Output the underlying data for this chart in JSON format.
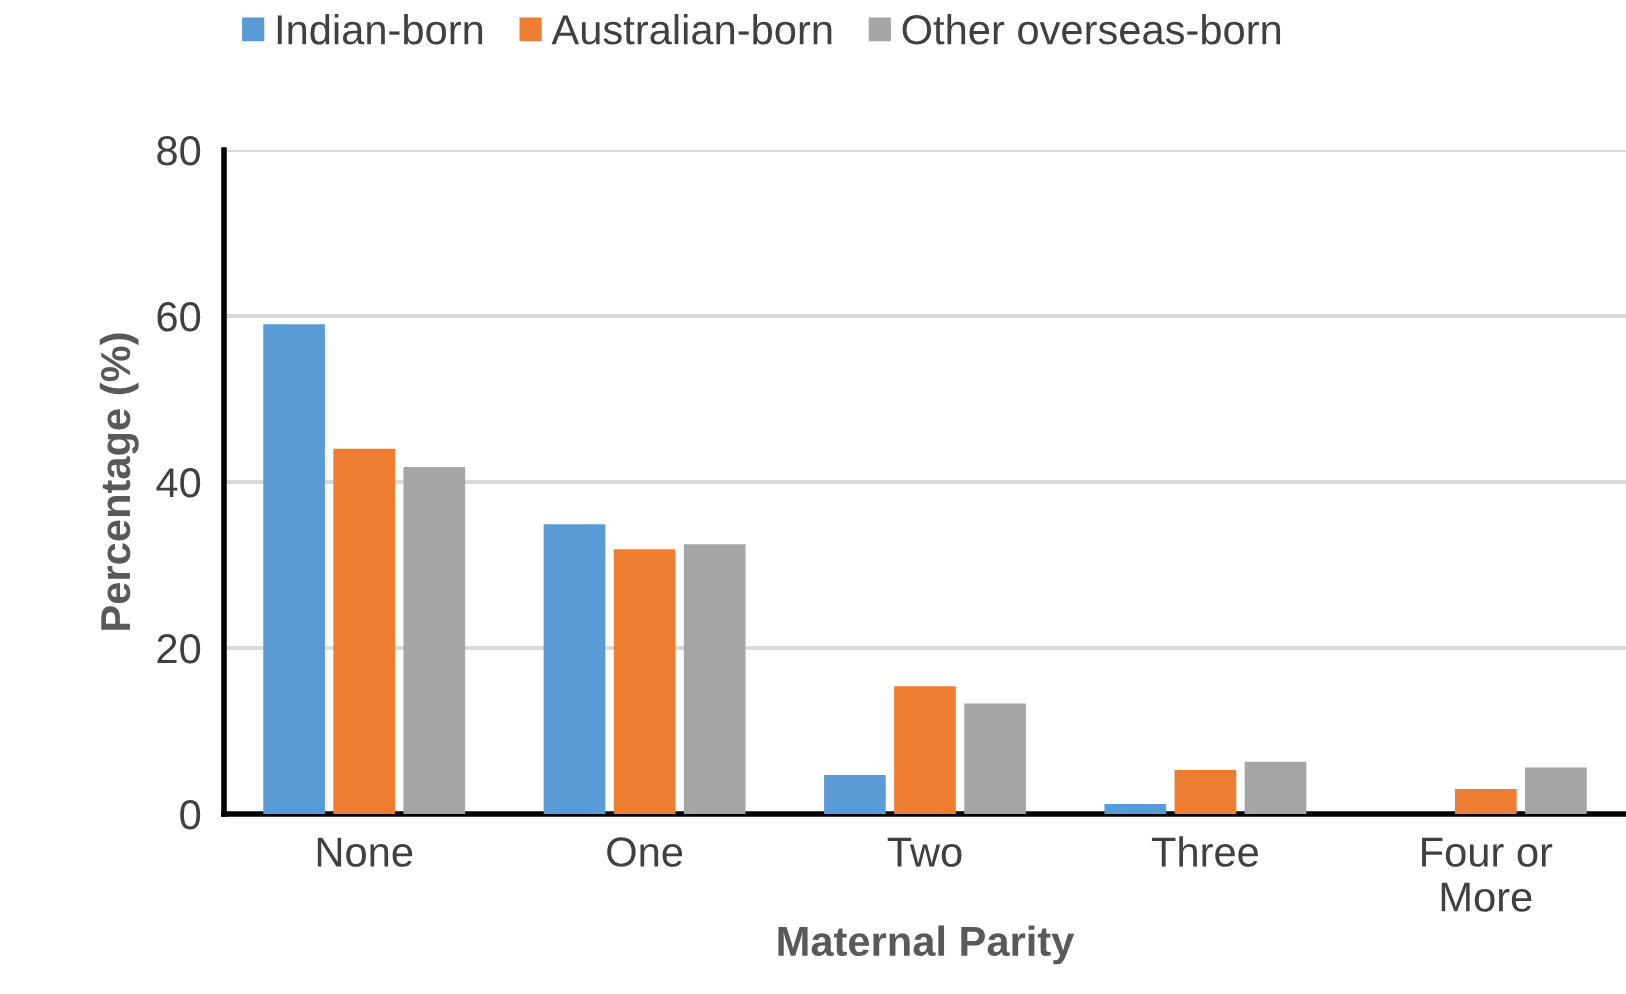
{
  "chart_data": {
    "type": "bar",
    "xlabel": "Maternal Parity",
    "ylabel": "Percentage (%)",
    "categories": [
      "None",
      "One",
      "Two",
      "Three",
      "Four or\nMore"
    ],
    "series": [
      {
        "name": "Indian-born",
        "color": "#5b9bd5",
        "values": [
          59.0,
          34.9,
          4.7,
          1.2,
          null
        ]
      },
      {
        "name": "Australian-born",
        "color": "#ed7d31",
        "values": [
          44.0,
          31.9,
          15.4,
          5.3,
          3.0
        ]
      },
      {
        "name": "Other overseas-born",
        "color": "#a5a5a5",
        "values": [
          41.8,
          32.5,
          13.3,
          6.3,
          5.6
        ]
      }
    ],
    "ylim": [
      0,
      80
    ],
    "yticks": [
      0,
      20,
      40,
      60,
      80
    ],
    "grid": "y",
    "legend": "top"
  }
}
